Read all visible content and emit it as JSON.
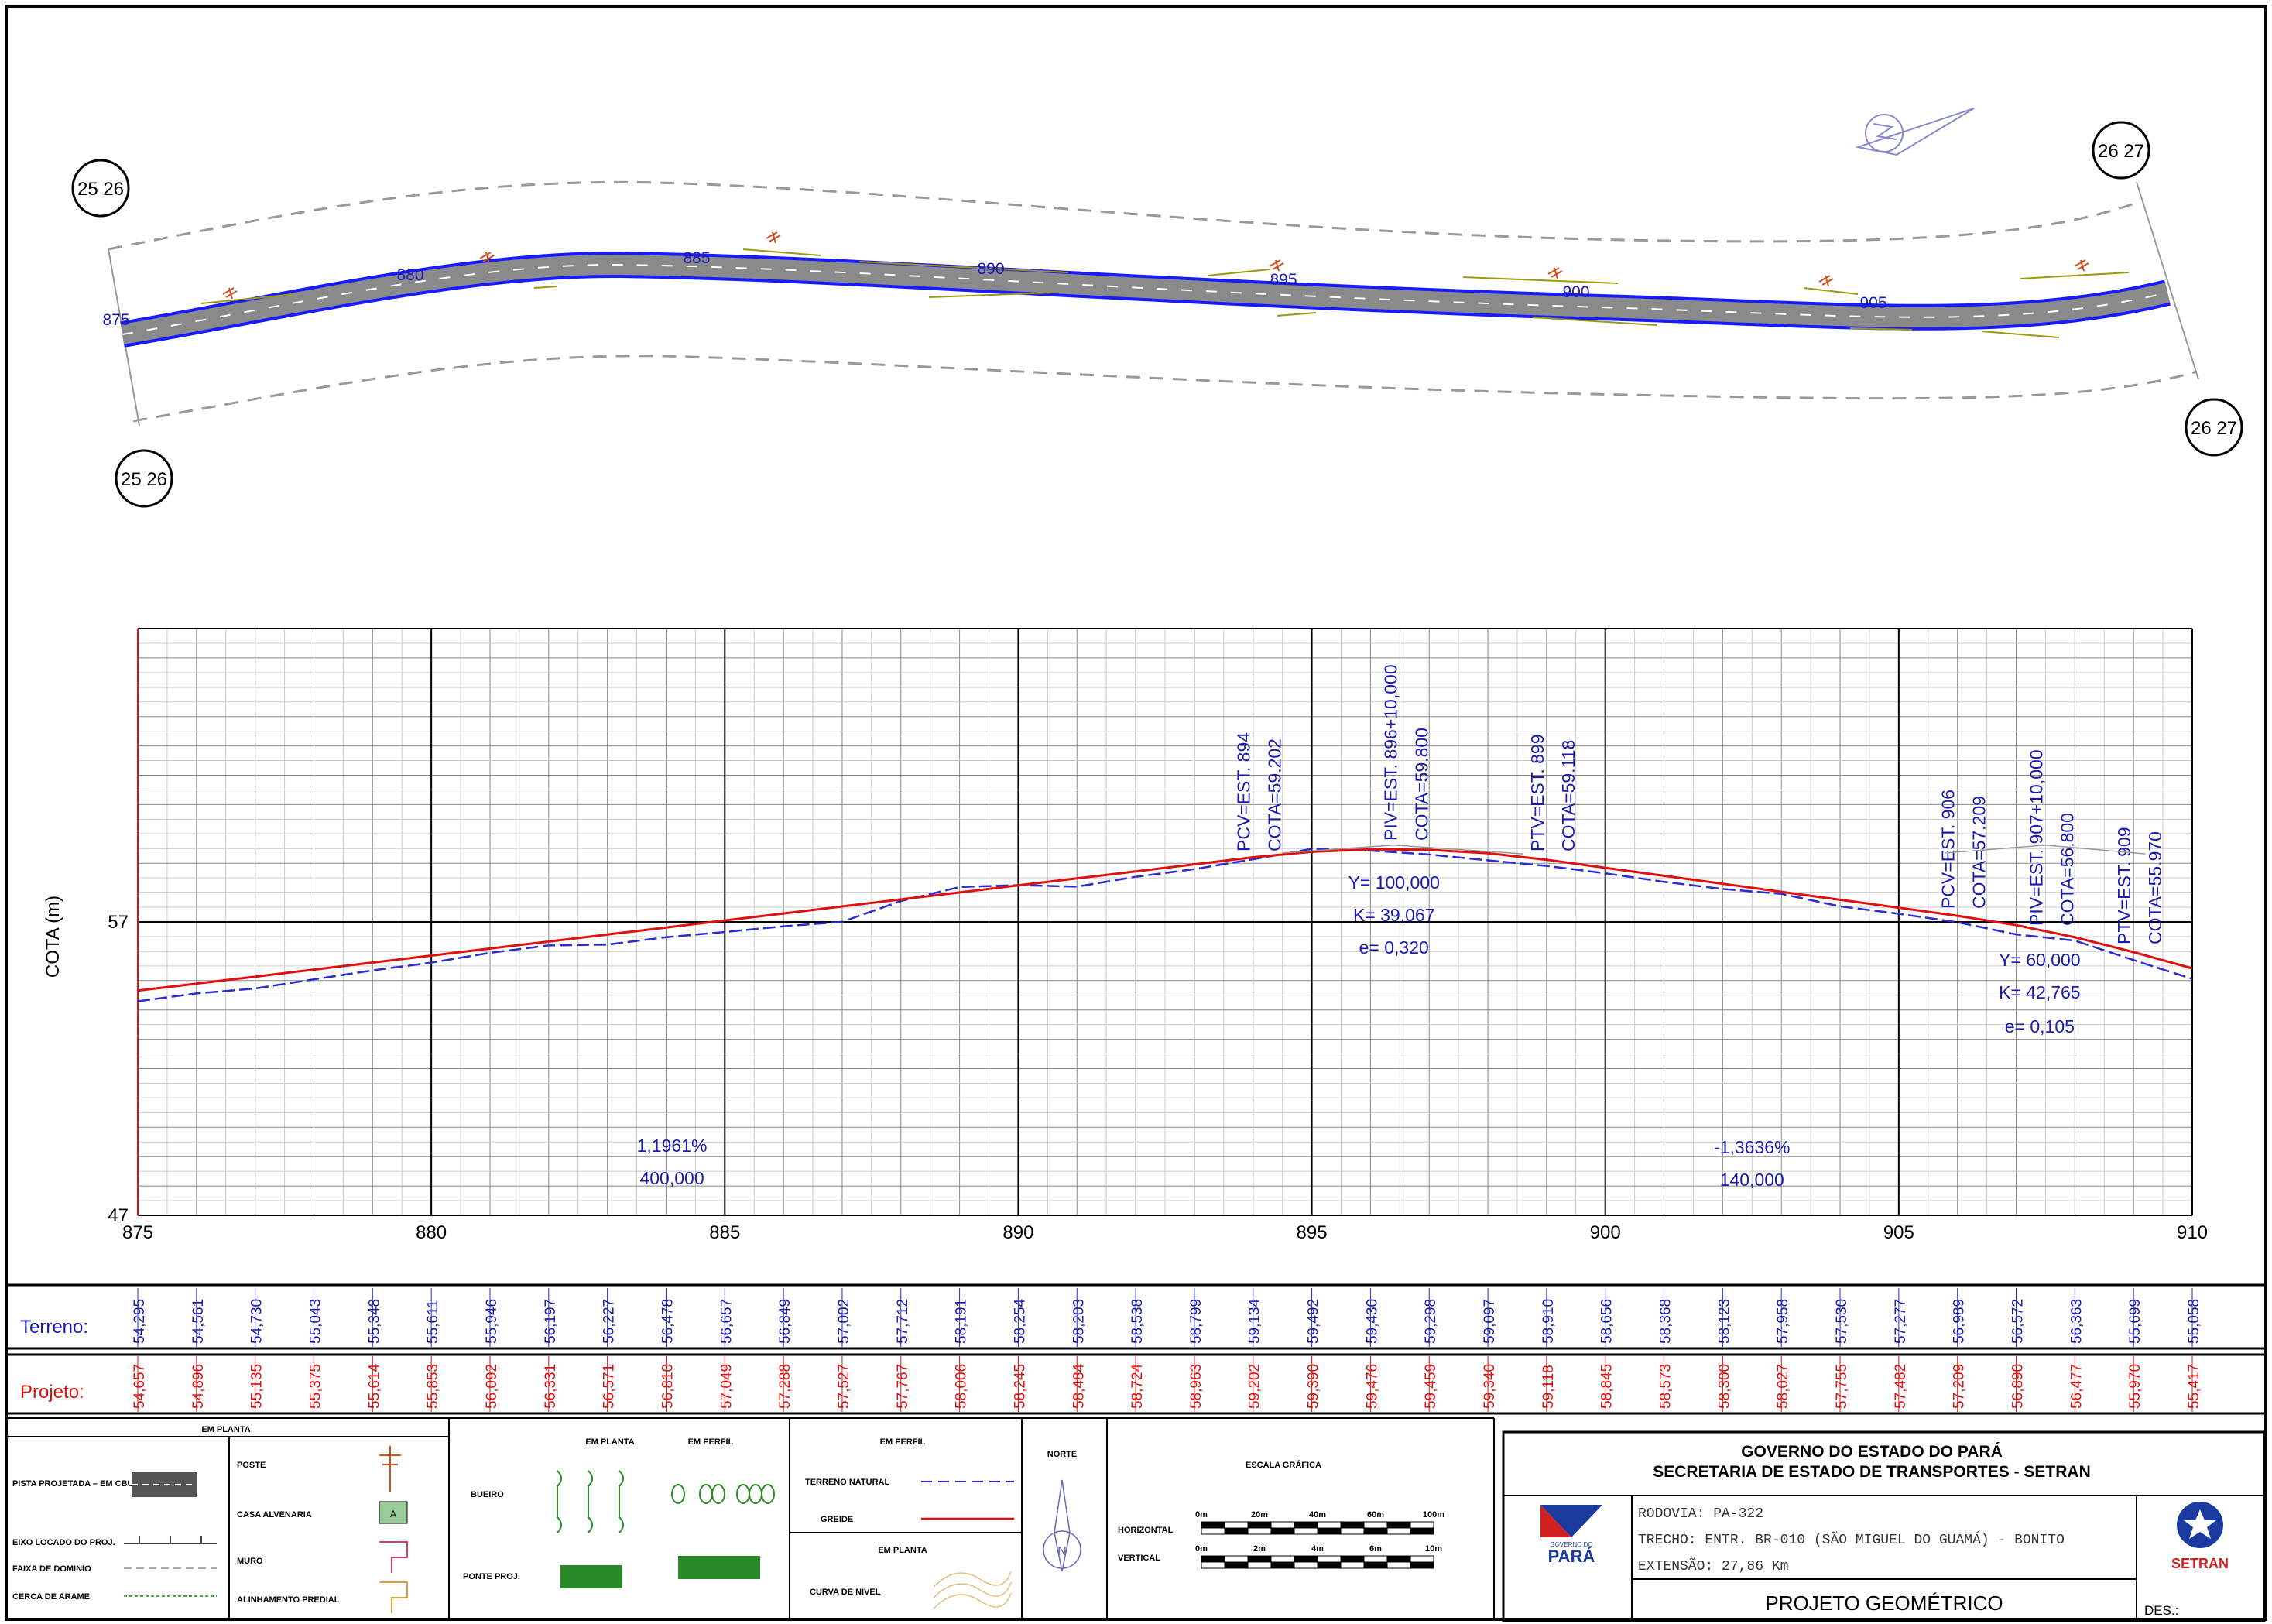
{
  "plan": {
    "match_labels": {
      "start_top": "25 26",
      "start_bottom": "25 26",
      "end_top": "26 27",
      "end_bottom": "26 27"
    },
    "stations": [
      {
        "label": "875",
        "x": 875,
        "y": 0
      },
      {
        "label": "880",
        "x": 880,
        "y": 0
      },
      {
        "label": "885",
        "x": 885,
        "y": 0
      },
      {
        "label": "890",
        "x": 890,
        "y": 0
      },
      {
        "label": "895",
        "x": 895,
        "y": 0
      },
      {
        "label": "900",
        "x": 900,
        "y": 0
      },
      {
        "label": "905",
        "x": 905,
        "y": 0
      }
    ]
  },
  "chart_data": {
    "type": "line",
    "ylabel": "COTA (m)",
    "xlim": [
      875,
      910
    ],
    "ylim": [
      47,
      67
    ],
    "x_ticks": [
      "875",
      "880",
      "885",
      "890",
      "895",
      "900",
      "905",
      "910"
    ],
    "y_ticks": [
      "47",
      "57"
    ],
    "grid": true,
    "series": [
      {
        "name": "Terreno",
        "color": "#2b2bd0",
        "dashed": true,
        "x": [
          875,
          876,
          877,
          878,
          879,
          880,
          881,
          882,
          883,
          884,
          885,
          886,
          887,
          888,
          889,
          890,
          891,
          892,
          893,
          894,
          895,
          896,
          897,
          898,
          899,
          900,
          901,
          902,
          903,
          904,
          905,
          906,
          907,
          908,
          909,
          910
        ],
        "values": [
          54.295,
          54.561,
          54.73,
          55.043,
          55.348,
          55.611,
          55.946,
          56.197,
          56.227,
          56.478,
          56.657,
          56.849,
          57.002,
          57.712,
          58.191,
          58.254,
          58.203,
          58.538,
          58.799,
          59.134,
          59.492,
          59.43,
          59.298,
          59.097,
          58.91,
          58.656,
          58.368,
          58.123,
          57.958,
          57.53,
          57.277,
          56.989,
          56.572,
          56.363,
          55.699,
          55.058
        ]
      },
      {
        "name": "Projeto",
        "color": "#e01010",
        "dashed": false,
        "x": [
          875,
          876,
          877,
          878,
          879,
          880,
          881,
          882,
          883,
          884,
          885,
          886,
          887,
          888,
          889,
          890,
          891,
          892,
          893,
          894,
          895,
          896,
          897,
          898,
          899,
          900,
          901,
          902,
          903,
          904,
          905,
          906,
          907,
          908,
          909,
          910
        ],
        "values": [
          54.657,
          54.896,
          55.135,
          55.375,
          55.614,
          55.853,
          56.092,
          56.331,
          56.571,
          56.81,
          57.049,
          57.288,
          57.527,
          57.767,
          58.006,
          58.245,
          58.484,
          58.724,
          58.963,
          59.202,
          59.39,
          59.476,
          59.459,
          59.34,
          59.118,
          58.845,
          58.573,
          58.3,
          58.027,
          57.755,
          57.482,
          57.209,
          56.89,
          56.477,
          55.97,
          55.417
        ]
      }
    ],
    "annotations": {
      "curve1": {
        "pcv": "PCV=EST. 894",
        "pcv_cota": "COTA=59.202",
        "piv": "PIV=EST. 896+10,000",
        "piv_cota": "COTA=59.800",
        "ptv": "PTV=EST. 899",
        "ptv_cota": "COTA=59.118",
        "y": "Y= 100,000",
        "k": "K= 39,067",
        "e": "e= 0,320"
      },
      "curve2": {
        "pcv": "PCV=EST. 906",
        "pcv_cota": "COTA=57.209",
        "piv": "PIV=EST. 907+10,000",
        "piv_cota": "COTA=56.800",
        "ptv": "PTV=EST. 909",
        "ptv_cota": "COTA=55.970",
        "y": "Y= 60,000",
        "k": "K= 42,765",
        "e": "e= 0,105"
      },
      "grade1": {
        "slope": "1,1961%",
        "length": "400,000"
      },
      "grade2": {
        "slope": "-1,3636%",
        "length": "140,000"
      }
    },
    "row_labels": {
      "terreno": "Terreno:",
      "projeto": "Projeto:"
    },
    "terreno_text": [
      "54,295",
      "54,561",
      "54,730",
      "55,043",
      "55,348",
      "55,611",
      "55,946",
      "56,197",
      "56,227",
      "56,478",
      "56,657",
      "56,849",
      "57,002",
      "57,712",
      "58,191",
      "58,254",
      "58,203",
      "58,538",
      "58,799",
      "59,134",
      "59,492",
      "59,430",
      "59,298",
      "59,097",
      "58,910",
      "58,656",
      "58,368",
      "58,123",
      "57,958",
      "57,530",
      "57,277",
      "56,989",
      "56,572",
      "56,363",
      "55,699",
      "55,058"
    ],
    "projeto_text": [
      "54,657",
      "54,896",
      "55,135",
      "55,375",
      "55,614",
      "55,853",
      "56,092",
      "56,331",
      "56,571",
      "56,810",
      "57,049",
      "57,288",
      "57,527",
      "57,767",
      "58,006",
      "58,245",
      "58,484",
      "58,724",
      "58,963",
      "59,202",
      "59,390",
      "59,476",
      "59,459",
      "59,340",
      "59,118",
      "58,845",
      "58,573",
      "58,300",
      "58,027",
      "57,755",
      "57,482",
      "57,209",
      "56,890",
      "56,477",
      "55,970",
      "55,417"
    ]
  },
  "legend": {
    "em_planta_title": "EM PLANTA",
    "pista": "PISTA PROJETADA – EM CBUQ",
    "eixo": "EIXO LOCADO DO PROJ.",
    "faixa": "FAIXA DE DOMINIO",
    "cerca": "CERCA DE ARAME",
    "poste": "POSTE",
    "casa": "CASA ALVENARIA",
    "casa_mark": "A",
    "muro": "MURO",
    "alinhamento": "ALINHAMENTO PREDIAL",
    "bueiro": "BUEIRO",
    "ponte": "PONTE PROJ.",
    "em_planta2": "EM PLANTA",
    "em_perfil": "EM PERFIL",
    "em_perfil2": "EM PERFIL",
    "terreno_natural": "TERRENO NATURAL",
    "greide": "GREIDE",
    "em_planta3": "EM PLANTA",
    "curva": "CURVA DE NIVEL",
    "norte": "NORTE",
    "norte_mark": "N",
    "escala": "ESCALA GRÁFICA",
    "horizontal": "HORIZONTAL",
    "vertical": "VERTICAL",
    "h_ticks": [
      "0m",
      "20m",
      "40m",
      "60m",
      "100m"
    ],
    "v_ticks": [
      "0m",
      "2m",
      "4m",
      "6m",
      "10m"
    ]
  },
  "titleblock": {
    "gov": "GOVERNO DO ESTADO DO PARÁ",
    "sec": "SECRETARIA DE ESTADO DE TRANSPORTES - SETRAN",
    "rodovia": "RODOVIA: PA-322",
    "trecho": "TRECHO: ENTR. BR-010 (SÃO MIGUEL DO GUAMÁ) - BONITO",
    "extensao": "EXTENSÃO: 27,86 Km",
    "projeto": "PROJETO GEOMÉTRICO",
    "des": "DES.:",
    "logo_left_top": "GOVERNO DO",
    "logo_left": "PARÁ",
    "logo_right": "SETRAN"
  },
  "colors": {
    "road": "#8a8a8a",
    "edge": "#1a1aff",
    "terreno": "#2b2bd0",
    "projeto": "#e01010",
    "label_blue": "#1a1ab0"
  }
}
